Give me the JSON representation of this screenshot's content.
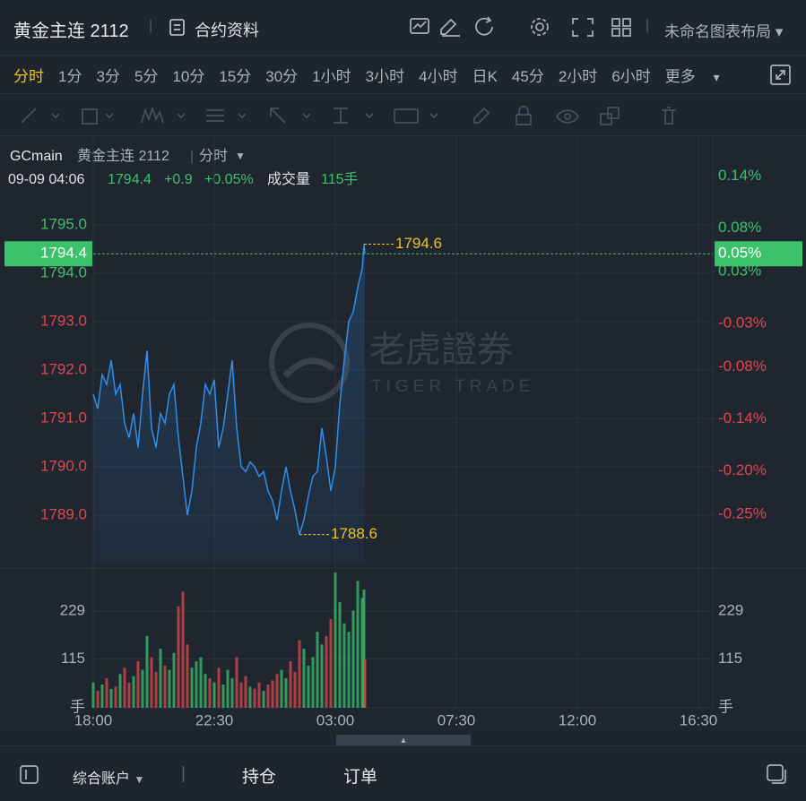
{
  "header": {
    "title": "黄金主连 2112",
    "contract_info": "合约资料",
    "layout": "未命名图表布局"
  },
  "timeframes": {
    "items": [
      "分时",
      "1分",
      "3分",
      "5分",
      "10分",
      "15分",
      "30分",
      "1小时",
      "3小时",
      "4小时",
      "日K",
      "45分",
      "2小时",
      "6小时"
    ],
    "selected": 0,
    "more": "更多"
  },
  "chart_data": {
    "type": "line",
    "symbol": "GCmain",
    "name": "黄金主连 2112",
    "period": "分时",
    "info": {
      "datetime": "09-09 04:06",
      "price": "1794.4",
      "change": "+0.9",
      "change_pct": "+0.05%",
      "volume_label": "成交量",
      "volume": "115手"
    },
    "watermark": {
      "cn": "老虎證券",
      "en": "TIGER TRADE"
    },
    "x": [
      "18:00",
      "18:10",
      "18:20",
      "18:30",
      "18:40",
      "18:50",
      "19:00",
      "19:10",
      "19:20",
      "19:30",
      "19:40",
      "19:50",
      "20:00",
      "20:10",
      "20:20",
      "20:30",
      "20:40",
      "20:50",
      "21:00",
      "21:10",
      "21:20",
      "21:30",
      "21:40",
      "21:50",
      "22:00",
      "22:10",
      "22:20",
      "22:30",
      "22:40",
      "22:50",
      "23:00",
      "23:10",
      "23:20",
      "23:30",
      "23:40",
      "23:50",
      "00:00",
      "00:10",
      "00:20",
      "00:30",
      "00:40",
      "00:50",
      "01:00",
      "01:10",
      "01:20",
      "01:30",
      "01:40",
      "01:50",
      "02:00",
      "02:10",
      "02:20",
      "02:30",
      "02:40",
      "02:50",
      "03:00",
      "03:10",
      "03:20",
      "03:30",
      "03:40",
      "03:50",
      "04:00",
      "04:04",
      "04:06"
    ],
    "values": [
      1791.5,
      1791.2,
      1791.9,
      1791.7,
      1792.2,
      1791.5,
      1791.7,
      1790.9,
      1790.6,
      1791.1,
      1790.4,
      1791.5,
      1792.4,
      1790.8,
      1790.4,
      1791.1,
      1790.9,
      1791.5,
      1791.7,
      1790.6,
      1789.8,
      1789.0,
      1789.5,
      1790.4,
      1790.9,
      1791.7,
      1791.5,
      1791.8,
      1790.4,
      1790.8,
      1791.5,
      1792.2,
      1790.8,
      1790.0,
      1789.9,
      1790.1,
      1790.0,
      1789.8,
      1789.9,
      1789.5,
      1789.3,
      1788.9,
      1789.5,
      1790.0,
      1789.5,
      1789.1,
      1788.6,
      1788.9,
      1789.4,
      1789.8,
      1789.9,
      1790.8,
      1790.2,
      1789.5,
      1790.0,
      1791.3,
      1792.2,
      1793.0,
      1793.2,
      1793.7,
      1794.1,
      1794.6,
      1794.4
    ],
    "volume": [
      60,
      40,
      55,
      70,
      45,
      50,
      80,
      95,
      60,
      75,
      110,
      90,
      170,
      120,
      85,
      140,
      100,
      90,
      130,
      240,
      275,
      150,
      95,
      110,
      120,
      80,
      70,
      60,
      95,
      55,
      90,
      70,
      120,
      60,
      75,
      50,
      45,
      60,
      40,
      55,
      65,
      80,
      90,
      70,
      110,
      85,
      160,
      140,
      100,
      120,
      180,
      150,
      170,
      210,
      320,
      250,
      200,
      180,
      230,
      300,
      260,
      280,
      115
    ],
    "color": "#2f8fe8",
    "up_color": "#3cc26a",
    "down_color": "#e0474c",
    "annotation_color": "#f0c419",
    "high": 1794.6,
    "low": 1788.6,
    "last": 1794.4,
    "last_pct": "0.05%",
    "xlim": [
      "18:00",
      "17:00"
    ],
    "xticks": [
      "18:00",
      "22:30",
      "03:00",
      "07:30",
      "12:00",
      "16:30"
    ],
    "ylim": [
      1788,
      1796.2
    ],
    "yticks": [
      {
        "value": 1795,
        "label": "1795.0"
      },
      {
        "value": 1794,
        "label": "1794.0"
      },
      {
        "value": 1793,
        "label": "1793.0"
      },
      {
        "value": 1792,
        "label": "1792.0"
      },
      {
        "value": 1791,
        "label": "1791.0"
      },
      {
        "value": 1790,
        "label": "1790.0"
      },
      {
        "value": 1789,
        "label": "1789.0"
      }
    ],
    "y2lim": [
      -0.307,
      0.151
    ],
    "y2ticks": [
      {
        "value": 0.14,
        "label": "0.14%"
      },
      {
        "value": 0.08,
        "label": "0.08%"
      },
      {
        "value": 0.03,
        "label": "0.03%"
      },
      {
        "value": -0.03,
        "label": "-0.03%"
      },
      {
        "value": -0.08,
        "label": "-0.08%"
      },
      {
        "value": -0.14,
        "label": "-0.14%"
      },
      {
        "value": -0.2,
        "label": "-0.20%"
      },
      {
        "value": -0.25,
        "label": "-0.25%"
      }
    ],
    "vlim": [
      0,
      318
    ],
    "vticks": [
      229,
      115,
      {
        "value": 0,
        "label": "手"
      }
    ],
    "grid": true
  },
  "footer": {
    "account": "综合账户",
    "tabs": [
      "持仓",
      "订单"
    ]
  }
}
